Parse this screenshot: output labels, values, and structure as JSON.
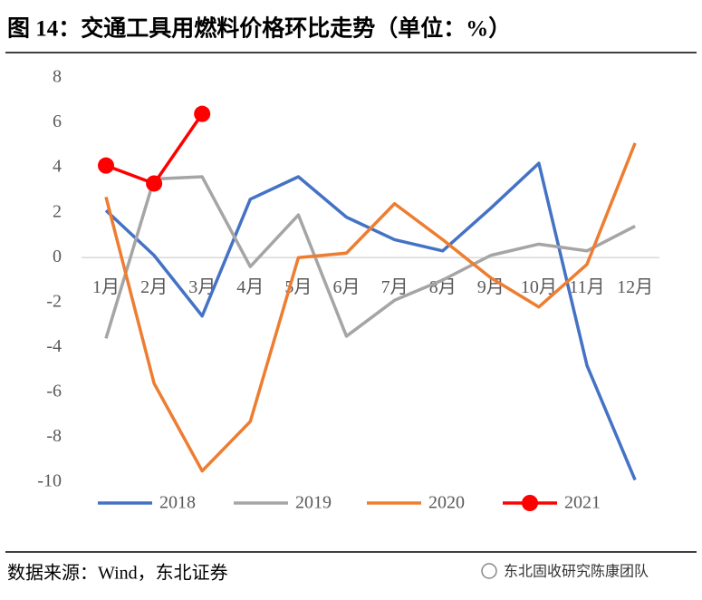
{
  "chart_data": {
    "type": "line",
    "title": "图 14：交通工具用燃料价格环比走势（单位：%）",
    "source": "数据来源：Wind，东北证券",
    "watermark": "东北固收研究陈康团队",
    "categories": [
      "1月",
      "2月",
      "3月",
      "4月",
      "5月",
      "6月",
      "7月",
      "8月",
      "9月",
      "10月",
      "11月",
      "12月"
    ],
    "ylim": [
      -10,
      8
    ],
    "yticks": [
      8,
      6,
      4,
      2,
      0,
      -2,
      -4,
      -6,
      -8,
      -10
    ],
    "grid": false,
    "legend": "bottom",
    "series": [
      {
        "name": "2018",
        "color": "#4472c4",
        "marker": false,
        "values": [
          2.1,
          0.1,
          -2.6,
          2.6,
          3.6,
          1.8,
          0.8,
          0.3,
          2.2,
          4.2,
          -4.8,
          -9.9
        ]
      },
      {
        "name": "2019",
        "color": "#a5a5a5",
        "marker": false,
        "values": [
          -3.6,
          3.5,
          3.6,
          -0.4,
          1.9,
          -3.5,
          -1.9,
          -1.0,
          0.1,
          0.6,
          0.3,
          1.4
        ]
      },
      {
        "name": "2020",
        "color": "#ed7d31",
        "marker": false,
        "values": [
          2.7,
          -5.6,
          -9.5,
          -7.3,
          0,
          0.2,
          2.4,
          0.8,
          -0.9,
          -2.2,
          -0.3,
          5.1
        ]
      },
      {
        "name": "2021",
        "color": "#ff0000",
        "marker": true,
        "values": [
          4.1,
          3.3,
          6.4,
          null,
          null,
          null,
          null,
          null,
          null,
          null,
          null,
          null
        ]
      }
    ]
  }
}
